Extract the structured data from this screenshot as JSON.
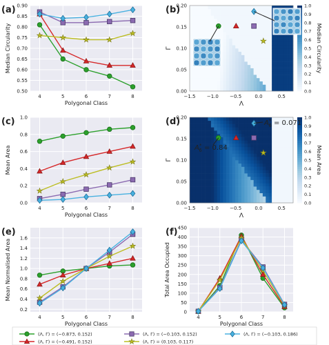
{
  "markers": [
    {
      "color": "#2ca02c",
      "stroke": "#1a6e1a",
      "shape": "circle"
    },
    {
      "color": "#d62728",
      "stroke": "#8c1a1a",
      "shape": "triangle"
    },
    {
      "color": "#8c6bb1",
      "stroke": "#4b3a6a",
      "shape": "square"
    },
    {
      "color": "#bcbd22",
      "stroke": "#7a7a15",
      "shape": "star"
    },
    {
      "color": "#48b1e0",
      "stroke": "#1f6f99",
      "shape": "diamond"
    }
  ],
  "legend": [
    {
      "label": "(Λ, Γ) = (−0.873, 0.152)",
      "series": 0
    },
    {
      "label": "(Λ, Γ) = (−0.491, 0.152)",
      "series": 1
    },
    {
      "label": "(Λ, Γ) = (−0.103, 0.152)",
      "series": 2
    },
    {
      "label": "(Λ, Γ) = (0.103, 0.117)",
      "series": 3
    },
    {
      "label": "(Λ, Γ) = (−0.103, 0.186)",
      "series": 4
    }
  ],
  "chart_data": [
    {
      "panel": "(a)",
      "type": "line",
      "xlabel": "Polygonal Class",
      "ylabel": "Median Circularity",
      "x": [
        4,
        5,
        6,
        7,
        8
      ],
      "xlim": [
        3.6,
        8.4
      ],
      "ylim": [
        0.5,
        0.9
      ],
      "xticks": [
        4,
        5,
        6,
        7,
        8
      ],
      "yticks": [
        0.5,
        0.55,
        0.6,
        0.65,
        0.7,
        0.75,
        0.8,
        0.85,
        0.9
      ],
      "ytick_labels": [
        "0.50",
        "0.55",
        "0.60",
        "0.65",
        "0.70",
        "0.75",
        "0.80",
        "0.85",
        "0.90"
      ],
      "series": [
        {
          "values": [
            0.81,
            0.65,
            0.6,
            0.57,
            0.52
          ]
        },
        {
          "values": [
            0.86,
            0.69,
            0.64,
            0.62,
            0.62
          ]
        },
        {
          "values": [
            0.87,
            0.82,
            0.82,
            0.825,
            0.83
          ]
        },
        {
          "values": [
            0.76,
            0.75,
            0.74,
            0.74,
            0.77
          ]
        },
        {
          "values": [
            0.86,
            0.84,
            0.845,
            0.86,
            0.88
          ]
        }
      ]
    },
    {
      "panel": "(b)",
      "type": "heatmap",
      "xlabel": "Λ",
      "ylabel": "Γ",
      "colorbar_label": "Median Circularity",
      "xlim": [
        -1.5,
        0.75
      ],
      "ylim": [
        0.0,
        0.2
      ],
      "xticks": [
        -1.5,
        -1.0,
        -0.5,
        0.0,
        0.5
      ],
      "xtick_labels": [
        "−1.5",
        "−1.0",
        "−0.5",
        "0.0",
        "0.5"
      ],
      "yticks": [
        0.0,
        0.05,
        0.1,
        0.15,
        0.2
      ],
      "ytick_labels": [
        "0.00",
        "0.05",
        "0.10",
        "0.15",
        "0.20"
      ],
      "cbar_ticks": [
        0.0,
        0.1,
        0.2,
        0.3,
        0.4,
        0.5,
        0.6,
        0.7,
        0.8,
        0.9,
        1.0
      ],
      "cbar_tick_labels": [
        "0.0",
        "0.1",
        "0.2",
        "0.3",
        "0.4",
        "0.5",
        "0.6",
        "0.7",
        "0.8",
        "0.9",
        "1.0"
      ],
      "points": [
        {
          "x": -0.873,
          "y": 0.152,
          "series": 0
        },
        {
          "x": -0.491,
          "y": 0.152,
          "series": 1
        },
        {
          "x": -0.103,
          "y": 0.152,
          "series": 2
        },
        {
          "x": 0.103,
          "y": 0.117,
          "series": 3
        },
        {
          "x": -0.103,
          "y": 0.186,
          "series": 4
        }
      ]
    },
    {
      "panel": "(c)",
      "type": "line",
      "xlabel": "Polygonal Class",
      "ylabel": "Mean Area",
      "x": [
        4,
        5,
        6,
        7,
        8
      ],
      "xlim": [
        3.6,
        8.4
      ],
      "ylim": [
        0.0,
        1.0
      ],
      "xticks": [
        4,
        5,
        6,
        7,
        8
      ],
      "yticks": [
        0.0,
        0.2,
        0.4,
        0.6,
        0.8,
        1.0
      ],
      "ytick_labels": [
        "0.0",
        "0.2",
        "0.4",
        "0.6",
        "0.8",
        "1.0"
      ],
      "series": [
        {
          "values": [
            0.72,
            0.78,
            0.82,
            0.86,
            0.88
          ]
        },
        {
          "values": [
            0.37,
            0.47,
            0.54,
            0.6,
            0.66
          ]
        },
        {
          "values": [
            0.05,
            0.1,
            0.16,
            0.21,
            0.27
          ]
        },
        {
          "values": [
            0.14,
            0.25,
            0.33,
            0.41,
            0.48
          ]
        },
        {
          "values": [
            0.03,
            0.04,
            0.07,
            0.09,
            0.11
          ]
        }
      ]
    },
    {
      "panel": "(d)",
      "type": "heatmap",
      "xlabel": "Λ",
      "ylabel": "Γ",
      "colorbar_label": "Mean Area",
      "xlim": [
        -1.5,
        0.75
      ],
      "ylim": [
        0.0,
        0.2
      ],
      "xticks": [
        -1.5,
        -1.0,
        -0.5,
        0.0,
        0.5
      ],
      "xtick_labels": [
        "−1.5",
        "−1.0",
        "−0.5",
        "0.0",
        "0.5"
      ],
      "yticks": [
        0.0,
        0.05,
        0.1,
        0.15,
        0.2
      ],
      "ytick_labels": [
        "0.00",
        "0.05",
        "0.10",
        "0.15",
        "0.20"
      ],
      "cbar_ticks": [
        0.0,
        0.1,
        0.2,
        0.3,
        0.4,
        0.5,
        0.6,
        0.7,
        0.8,
        0.9,
        1.0
      ],
      "cbar_tick_labels": [
        "0.0",
        "0.1",
        "0.2",
        "0.3",
        "0.4",
        "0.5",
        "0.6",
        "0.7",
        "0.8",
        "0.9",
        "1.0"
      ],
      "annotations": [
        {
          "base": "A",
          "sup": "*",
          "sub": "6",
          "text": " = 0.071"
        },
        {
          "base": "A",
          "sup": "*",
          "sub": "6",
          "text": " = 0.84"
        }
      ],
      "points": [
        {
          "x": -0.873,
          "y": 0.152,
          "series": 0
        },
        {
          "x": -0.491,
          "y": 0.152,
          "series": 1
        },
        {
          "x": -0.103,
          "y": 0.152,
          "series": 2
        },
        {
          "x": 0.103,
          "y": 0.117,
          "series": 3
        },
        {
          "x": -0.103,
          "y": 0.186,
          "series": 4
        }
      ]
    },
    {
      "panel": "(e)",
      "type": "line",
      "xlabel": "Polygonal Class",
      "ylabel": "Mean Normalised Area",
      "x": [
        4,
        5,
        6,
        7,
        8
      ],
      "xlim": [
        3.6,
        8.4
      ],
      "ylim": [
        0.15,
        1.8
      ],
      "xticks": [
        4,
        5,
        6,
        7,
        8
      ],
      "yticks": [
        0.2,
        0.4,
        0.6,
        0.8,
        1.0,
        1.2,
        1.4,
        1.6
      ],
      "ytick_labels": [
        "0.2",
        "0.4",
        "0.6",
        "0.8",
        "1.0",
        "1.2",
        "1.4",
        "1.6"
      ],
      "series": [
        {
          "values": [
            0.87,
            0.95,
            1.0,
            1.05,
            1.07
          ]
        },
        {
          "values": [
            0.69,
            0.87,
            1.0,
            1.1,
            1.2
          ]
        },
        {
          "values": [
            0.34,
            0.64,
            1.0,
            1.32,
            1.67
          ]
        },
        {
          "values": [
            0.42,
            0.75,
            1.0,
            1.24,
            1.44
          ]
        },
        {
          "values": [
            0.32,
            0.62,
            1.0,
            1.36,
            1.72
          ]
        }
      ]
    },
    {
      "panel": "(f)",
      "type": "line",
      "xlabel": "Polygonal Class",
      "ylabel": "Total Area Occupied",
      "x": [
        4,
        5,
        6,
        7,
        8
      ],
      "xlim": [
        3.6,
        8.4
      ],
      "ylim": [
        0,
        450
      ],
      "xticks": [
        4,
        5,
        6,
        7,
        8
      ],
      "yticks": [
        0,
        50,
        100,
        150,
        200,
        250,
        300,
        350,
        400,
        450
      ],
      "ytick_labels": [
        "0",
        "50",
        "100",
        "150",
        "200",
        "250",
        "300",
        "350",
        "400",
        "450"
      ],
      "series": [
        {
          "values": [
            3,
            140,
            410,
            180,
            22
          ]
        },
        {
          "values": [
            3,
            180,
            405,
            200,
            28
          ]
        },
        {
          "values": [
            3,
            130,
            385,
            240,
            40
          ]
        },
        {
          "values": [
            3,
            170,
            395,
            220,
            35
          ]
        },
        {
          "values": [
            3,
            125,
            380,
            235,
            38
          ]
        }
      ]
    }
  ]
}
